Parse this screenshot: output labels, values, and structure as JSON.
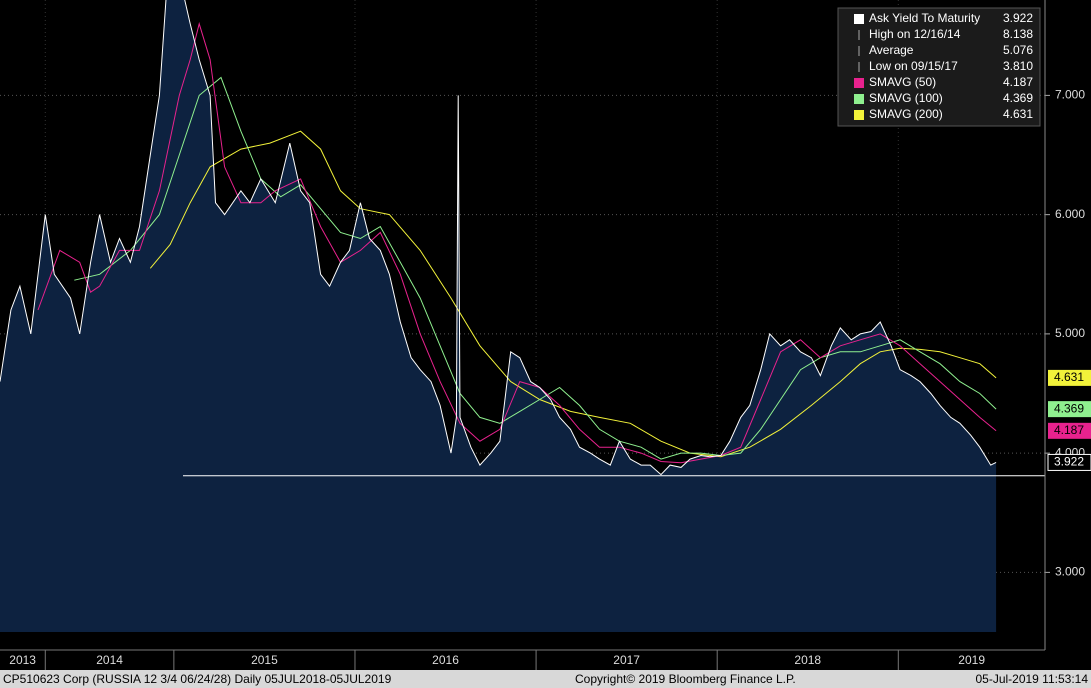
{
  "chart_data": {
    "type": "line",
    "xlim": [
      2014.04,
      2019.81
    ],
    "ylim": [
      2.5,
      7.8
    ],
    "yticks": [
      {
        "value": 3,
        "label": "3.000"
      },
      {
        "value": 4,
        "label": "4.000"
      },
      {
        "value": 5,
        "label": "5.000"
      },
      {
        "value": 6,
        "label": "6.000"
      },
      {
        "value": 7,
        "label": "7.000"
      }
    ],
    "xticks": [
      2014.29,
      2015,
      2016,
      2017,
      2018,
      2019
    ],
    "year_labels": [
      "2013",
      "2014",
      "2015",
      "2016",
      "2017",
      "2018",
      "2019"
    ],
    "grid": true,
    "series": [
      {
        "name": "Ask Yield To Maturity",
        "color": "#ffffff",
        "fill": "#0d2240",
        "x": [
          2014.04,
          2014.1,
          2014.15,
          2014.21,
          2014.29,
          2014.34,
          2014.43,
          2014.48,
          2014.54,
          2014.59,
          2014.65,
          2014.7,
          2014.76,
          2014.81,
          2014.87,
          2014.92,
          2014.97,
          2015.03,
          2015.09,
          2015.14,
          2015.2,
          2015.23,
          2015.28,
          2015.37,
          2015.42,
          2015.48,
          2015.56,
          2015.64,
          2015.7,
          2015.75,
          2015.81,
          2015.86,
          2015.92,
          2015.97,
          2016.03,
          2016.08,
          2016.14,
          2016.19,
          2016.25,
          2016.31,
          2016.36,
          2016.42,
          2016.47,
          2016.53,
          2016.56,
          2016.57,
          2016.58,
          2016.64,
          2016.69,
          2016.75,
          2016.8,
          2016.86,
          2016.91,
          2016.97,
          2017.02,
          2017.08,
          2017.13,
          2017.19,
          2017.24,
          2017.3,
          2017.35,
          2017.41,
          2017.46,
          2017.52,
          2017.58,
          2017.63,
          2017.69,
          2017.74,
          2017.8,
          2017.85,
          2017.91,
          2017.96,
          2018.02,
          2018.07,
          2018.13,
          2018.18,
          2018.24,
          2018.29,
          2018.35,
          2018.4,
          2018.46,
          2018.52,
          2018.57,
          2018.63,
          2018.68,
          2018.74,
          2018.79,
          2018.85,
          2018.9,
          2018.96,
          2019.01,
          2019.07,
          2019.12,
          2019.18,
          2019.23,
          2019.29,
          2019.34,
          2019.4,
          2019.45,
          2019.51,
          2019.54
        ],
        "values": [
          4.6,
          5.2,
          5.4,
          5.0,
          6.0,
          5.5,
          5.3,
          5.0,
          5.6,
          6.0,
          5.6,
          5.8,
          5.6,
          5.9,
          6.5,
          7.0,
          8.1,
          8.0,
          7.6,
          7.3,
          7.0,
          6.1,
          6.0,
          6.2,
          6.1,
          6.3,
          6.1,
          6.6,
          6.2,
          6.1,
          5.5,
          5.4,
          5.6,
          5.7,
          6.1,
          5.8,
          5.7,
          5.5,
          5.1,
          4.8,
          4.7,
          4.6,
          4.4,
          4.0,
          4.3,
          7.0,
          4.3,
          4.05,
          3.9,
          4.0,
          4.1,
          4.85,
          4.8,
          4.6,
          4.55,
          4.45,
          4.3,
          4.2,
          4.05,
          4.0,
          3.95,
          3.9,
          4.1,
          3.95,
          3.9,
          3.9,
          3.82,
          3.9,
          3.88,
          3.95,
          3.98,
          3.97,
          3.98,
          4.1,
          4.3,
          4.4,
          4.7,
          5.0,
          4.9,
          4.95,
          4.85,
          4.8,
          4.65,
          4.9,
          5.05,
          4.95,
          5.0,
          5.02,
          5.1,
          4.9,
          4.7,
          4.65,
          4.6,
          4.5,
          4.4,
          4.3,
          4.25,
          4.15,
          4.05,
          3.9,
          3.922
        ]
      },
      {
        "name": "SMAVG (50)",
        "color": "#e8228e",
        "x": [
          2014.25,
          2014.37,
          2014.48,
          2014.54,
          2014.59,
          2014.7,
          2014.81,
          2014.92,
          2015.03,
          2015.09,
          2015.14,
          2015.2,
          2015.28,
          2015.37,
          2015.48,
          2015.56,
          2015.7,
          2015.81,
          2015.92,
          2016.03,
          2016.14,
          2016.25,
          2016.36,
          2016.47,
          2016.58,
          2016.69,
          2016.8,
          2016.91,
          2017.02,
          2017.13,
          2017.24,
          2017.35,
          2017.46,
          2017.58,
          2017.69,
          2017.8,
          2017.91,
          2018.02,
          2018.13,
          2018.24,
          2018.35,
          2018.46,
          2018.57,
          2018.68,
          2018.79,
          2018.9,
          2019.01,
          2019.12,
          2019.23,
          2019.34,
          2019.45,
          2019.54
        ],
        "values": [
          5.2,
          5.7,
          5.6,
          5.35,
          5.4,
          5.7,
          5.7,
          6.2,
          7.0,
          7.3,
          7.6,
          7.3,
          6.4,
          6.1,
          6.1,
          6.2,
          6.3,
          5.9,
          5.6,
          5.7,
          5.85,
          5.5,
          5.0,
          4.6,
          4.25,
          4.1,
          4.2,
          4.6,
          4.55,
          4.4,
          4.2,
          4.05,
          4.05,
          4.0,
          3.93,
          3.92,
          3.95,
          3.98,
          4.05,
          4.45,
          4.85,
          4.95,
          4.8,
          4.9,
          4.95,
          5.0,
          4.9,
          4.75,
          4.6,
          4.45,
          4.3,
          4.187
        ]
      },
      {
        "name": "SMAVG (100)",
        "color": "#8ff08f",
        "x": [
          2014.45,
          2014.59,
          2014.76,
          2014.92,
          2015.03,
          2015.14,
          2015.26,
          2015.37,
          2015.48,
          2015.59,
          2015.7,
          2015.81,
          2015.92,
          2016.03,
          2016.14,
          2016.25,
          2016.36,
          2016.47,
          2016.58,
          2016.69,
          2016.8,
          2016.91,
          2017.02,
          2017.13,
          2017.24,
          2017.35,
          2017.46,
          2017.58,
          2017.69,
          2017.8,
          2017.91,
          2018.02,
          2018.13,
          2018.24,
          2018.35,
          2018.46,
          2018.57,
          2018.68,
          2018.79,
          2018.9,
          2019.01,
          2019.12,
          2019.23,
          2019.34,
          2019.45,
          2019.54
        ],
        "values": [
          5.45,
          5.5,
          5.7,
          6.0,
          6.5,
          7.0,
          7.15,
          6.7,
          6.3,
          6.15,
          6.25,
          6.05,
          5.85,
          5.8,
          5.9,
          5.6,
          5.3,
          4.9,
          4.5,
          4.3,
          4.25,
          4.35,
          4.45,
          4.55,
          4.4,
          4.2,
          4.1,
          4.05,
          3.95,
          4.0,
          4.0,
          3.98,
          4.0,
          4.2,
          4.45,
          4.7,
          4.8,
          4.85,
          4.85,
          4.9,
          4.95,
          4.85,
          4.75,
          4.6,
          4.5,
          4.369
        ]
      },
      {
        "name": "SMAVG (200)",
        "color": "#f2f23a",
        "x": [
          2014.87,
          2014.98,
          2015.09,
          2015.2,
          2015.37,
          2015.53,
          2015.7,
          2015.81,
          2015.92,
          2016.03,
          2016.19,
          2016.36,
          2016.53,
          2016.69,
          2016.86,
          2017.02,
          2017.19,
          2017.35,
          2017.52,
          2017.69,
          2017.85,
          2018.02,
          2018.18,
          2018.35,
          2018.52,
          2018.68,
          2018.79,
          2018.9,
          2019.01,
          2019.12,
          2019.23,
          2019.34,
          2019.45,
          2019.54
        ],
        "values": [
          5.55,
          5.75,
          6.1,
          6.4,
          6.55,
          6.6,
          6.7,
          6.55,
          6.2,
          6.05,
          6.0,
          5.7,
          5.3,
          4.9,
          4.6,
          4.45,
          4.35,
          4.3,
          4.25,
          4.1,
          4.0,
          3.97,
          4.05,
          4.2,
          4.4,
          4.6,
          4.75,
          4.85,
          4.88,
          4.87,
          4.85,
          4.8,
          4.75,
          4.631
        ]
      }
    ],
    "stats": [
      {
        "label": "High on 12/16/14",
        "value": 8.138
      },
      {
        "label": "Average",
        "value": 5.076
      },
      {
        "label": "Low on 09/15/17",
        "value": 3.81,
        "value_label": "3.810"
      }
    ],
    "footer": {
      "security": "CP510623 Corp (RUSSIA 12 3/4 06/24/28)  Daily 05JUL2018-05JUL2019",
      "copyright": "Copyright© 2019 Bloomberg Finance L.P.",
      "timestamp": "05-Jul-2019 11:53:14"
    }
  }
}
